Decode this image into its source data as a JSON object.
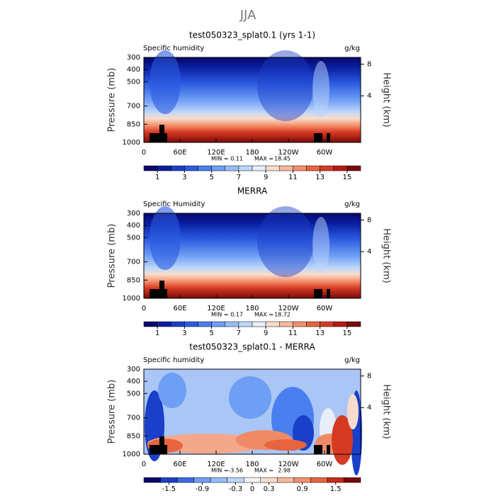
{
  "title": "JJA",
  "chart_data": [
    {
      "type": "contour",
      "title": "test050323_splat0.1 (yrs 1-1)",
      "left_label": "Specific humidity",
      "right_label": "g/kg",
      "ylabel": "Pressure (mb)",
      "y2label": "Height (km)",
      "xlim": [
        0,
        360
      ],
      "xticks": [
        0,
        {
          "value": 60,
          "label": "60E"
        },
        {
          "value": 120,
          "label": "120E"
        },
        180,
        {
          "value": 240,
          "label": "120W"
        },
        {
          "value": 300,
          "label": "60W"
        }
      ],
      "ylim": [
        1000,
        300
      ],
      "yticks": [
        300,
        400,
        500,
        700,
        850,
        1000
      ],
      "y2ticks": [
        8,
        4
      ],
      "y2_scale": "standard-atmosphere",
      "min_label": "MIN =",
      "min": 0.11,
      "max_label": "MAX =",
      "max": 18.45,
      "colorbar": {
        "lim": [
          0,
          16
        ],
        "ticks": [
          1,
          3,
          5,
          7,
          9,
          11,
          13,
          15
        ],
        "colors": [
          "#08086b",
          "#0a1fa0",
          "#1a3fc8",
          "#2a5ae0",
          "#4a7ff0",
          "#6f9ef5",
          "#96bdf8",
          "#bcd6fa",
          "#e6eef8",
          "#f8dccb",
          "#f7b89a",
          "#f4906c",
          "#e8643f",
          "#d53a22",
          "#b51a10",
          "#7a0a0a"
        ]
      }
    },
    {
      "type": "contour",
      "title": "MERRA",
      "left_label": "Specific Humidity",
      "right_label": "g/kg",
      "ylabel": "Pressure (mb)",
      "y2label": "Height (km)",
      "xlim": [
        0,
        360
      ],
      "xticks": [
        0,
        {
          "value": 60,
          "label": "60E"
        },
        {
          "value": 120,
          "label": "120E"
        },
        180,
        {
          "value": 240,
          "label": "120W"
        },
        {
          "value": 300,
          "label": "60W"
        }
      ],
      "ylim": [
        1000,
        300
      ],
      "yticks": [
        300,
        400,
        500,
        700,
        850,
        1000
      ],
      "y2ticks": [
        8,
        4
      ],
      "y2_scale": "standard-atmosphere",
      "min_label": "MIN =",
      "min": 0.17,
      "max_label": "MAX =",
      "max": 18.72,
      "colorbar": {
        "lim": [
          0,
          16
        ],
        "ticks": [
          1,
          3,
          5,
          7,
          9,
          11,
          13,
          15
        ],
        "colors": [
          "#08086b",
          "#0a1fa0",
          "#1a3fc8",
          "#2a5ae0",
          "#4a7ff0",
          "#6f9ef5",
          "#96bdf8",
          "#bcd6fa",
          "#e6eef8",
          "#f8dccb",
          "#f7b89a",
          "#f4906c",
          "#e8643f",
          "#d53a22",
          "#b51a10",
          "#7a0a0a"
        ]
      }
    },
    {
      "type": "contour",
      "title": "test050323_splat0.1 - MERRA",
      "left_label": "Specific humidity",
      "right_label": "g/kg",
      "ylabel": "Pressure (mb)",
      "y2label": "Height (km)",
      "xlim": [
        0,
        360
      ],
      "xticks": [
        0,
        {
          "value": 60,
          "label": "60E"
        },
        {
          "value": 120,
          "label": "120E"
        },
        180,
        {
          "value": 240,
          "label": "120W"
        },
        {
          "value": 300,
          "label": "60W"
        }
      ],
      "ylim": [
        1000,
        300
      ],
      "yticks": [
        300,
        400,
        500,
        700,
        850,
        1000
      ],
      "y2ticks": [
        8,
        4
      ],
      "y2_scale": "standard-atmosphere",
      "min_label": "MIN =",
      "min": -3.56,
      "max_label": "MAX =",
      "max": 2.98,
      "colorbar": {
        "lim": [
          -1.95,
          1.95
        ],
        "ticks": [
          -1.5,
          -0.9,
          -0.3,
          0,
          0.3,
          0.9,
          1.5
        ],
        "colors": [
          "#08086b",
          "#1a3fc8",
          "#3a6ae8",
          "#6f9ef5",
          "#96bdf8",
          "#bcd6fa",
          "#f4f4f4",
          "#f8dccb",
          "#f7b89a",
          "#f4906c",
          "#e8643f",
          "#c8281a",
          "#7a0a0a"
        ]
      }
    }
  ]
}
